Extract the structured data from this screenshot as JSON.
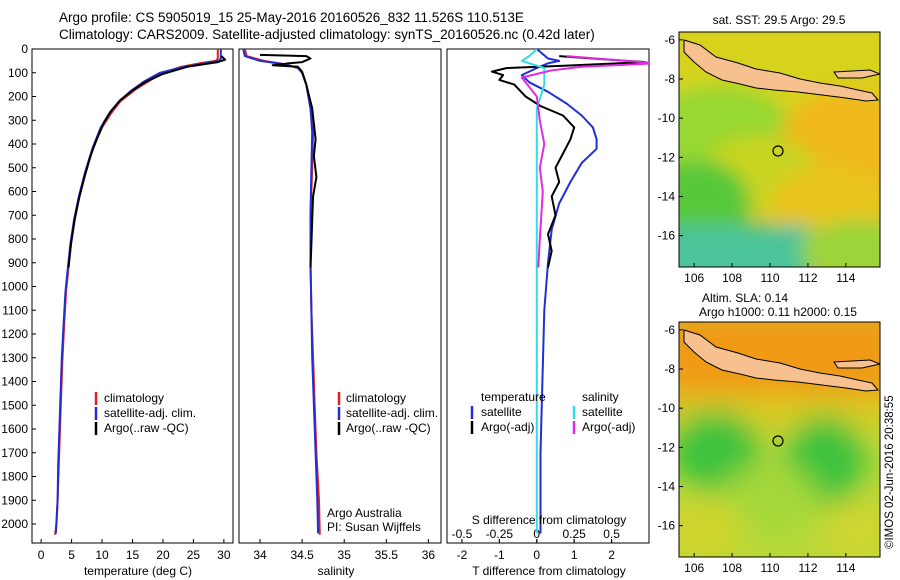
{
  "titles": {
    "line1": "Argo profile: CS 5905019_15 25-May-2016 20160526_832 11.526S 110.513E",
    "line2": "Climatology: CARS2009. Satellite-adjusted climatology: synTS_20160526.nc (0.42d later)"
  },
  "colors": {
    "climatology": "#e0201b",
    "satellite": "#1f2fd6",
    "argo": "#000000",
    "sat_s": "#33dde8",
    "argo_adj": "#e02be0",
    "land": "#f6c18f"
  },
  "depth_axis": {
    "ticks": [
      "0",
      "100",
      "200",
      "300",
      "400",
      "500",
      "600",
      "700",
      "800",
      "900",
      "1000",
      "1100",
      "1200",
      "1300",
      "1400",
      "1500",
      "1600",
      "1700",
      "1800",
      "1900",
      "2000"
    ],
    "ylim": [
      0,
      2080
    ]
  },
  "chart_data": [
    {
      "type": "line",
      "id": "temperature",
      "xlabel": "temperature (deg C)",
      "xlim": [
        -1.5,
        31.5
      ],
      "xticks": [
        "0",
        "5",
        "10",
        "15",
        "20",
        "25",
        "30"
      ],
      "legend": [
        "climatology",
        "satellite-adj. clim.",
        "Argo(..raw -QC)"
      ],
      "series": [
        {
          "name": "climatology",
          "color": "climatology",
          "points": [
            [
              29.0,
              0
            ],
            [
              29.0,
              40
            ],
            [
              28.7,
              50
            ],
            [
              26.0,
              60
            ],
            [
              23.0,
              75
            ],
            [
              20.0,
              100
            ],
            [
              18.0,
              130
            ],
            [
              15.5,
              170
            ],
            [
              13.0,
              220
            ],
            [
              11.5,
              270
            ],
            [
              10.0,
              330
            ],
            [
              8.5,
              420
            ],
            [
              7.3,
              520
            ],
            [
              6.3,
              620
            ],
            [
              5.5,
              720
            ],
            [
              4.9,
              820
            ],
            [
              4.5,
              920
            ],
            [
              4.1,
              1020
            ],
            [
              3.8,
              1150
            ],
            [
              3.5,
              1300
            ],
            [
              3.3,
              1450
            ],
            [
              3.1,
              1600
            ],
            [
              2.9,
              1750
            ],
            [
              2.7,
              1900
            ],
            [
              2.5,
              2000
            ],
            [
              2.3,
              2045
            ]
          ]
        },
        {
          "name": "satellite-adj. clim.",
          "color": "satellite",
          "points": [
            [
              29.5,
              0
            ],
            [
              29.5,
              40
            ],
            [
              29.2,
              50
            ],
            [
              26.5,
              62
            ],
            [
              23.0,
              78
            ],
            [
              19.5,
              100
            ],
            [
              17.0,
              135
            ],
            [
              14.8,
              175
            ],
            [
              12.8,
              220
            ],
            [
              11.2,
              270
            ],
            [
              9.8,
              330
            ],
            [
              8.4,
              420
            ],
            [
              7.2,
              520
            ],
            [
              6.2,
              620
            ],
            [
              5.4,
              720
            ],
            [
              4.8,
              820
            ],
            [
              4.4,
              920
            ],
            [
              4.0,
              1020
            ],
            [
              3.7,
              1150
            ],
            [
              3.4,
              1300
            ],
            [
              3.2,
              1450
            ],
            [
              3.0,
              1600
            ],
            [
              2.8,
              1750
            ],
            [
              2.7,
              1900
            ],
            [
              2.5,
              2000
            ],
            [
              2.4,
              2040
            ]
          ]
        },
        {
          "name": "Argo(..raw -QC)",
          "color": "argo",
          "points": [
            [
              29.6,
              30
            ],
            [
              30.2,
              45
            ],
            [
              29.0,
              55
            ],
            [
              24.0,
              75
            ],
            [
              20.0,
              105
            ],
            [
              17.0,
              140
            ],
            [
              15.0,
              175
            ],
            [
              13.0,
              215
            ],
            [
              11.5,
              260
            ],
            [
              10.3,
              310
            ],
            [
              9.1,
              380
            ],
            [
              8.1,
              450
            ],
            [
              7.1,
              540
            ],
            [
              6.2,
              630
            ],
            [
              5.5,
              720
            ],
            [
              4.9,
              820
            ],
            [
              4.5,
              920
            ]
          ]
        }
      ]
    },
    {
      "type": "line",
      "id": "salinity",
      "xlabel": "salinity",
      "xlim": [
        33.75,
        36.15
      ],
      "xticks": [
        "34",
        "34.5",
        "35",
        "35.5",
        "36"
      ],
      "legend": [
        "climatology",
        "satellite-adj. clim.",
        "Argo(..raw -QC)"
      ],
      "annotation": [
        "Argo Australia",
        "PI: Susan Wijffels"
      ],
      "series": [
        {
          "name": "climatology",
          "color": "climatology",
          "points": [
            [
              33.82,
              0
            ],
            [
              33.84,
              30
            ],
            [
              34.05,
              50
            ],
            [
              34.3,
              65
            ],
            [
              34.45,
              80
            ],
            [
              34.5,
              100
            ],
            [
              34.55,
              150
            ],
            [
              34.6,
              250
            ],
            [
              34.63,
              350
            ],
            [
              34.62,
              500
            ],
            [
              34.6,
              700
            ],
            [
              34.6,
              900
            ],
            [
              34.61,
              1100
            ],
            [
              34.63,
              1300
            ],
            [
              34.65,
              1500
            ],
            [
              34.67,
              1700
            ],
            [
              34.7,
              1900
            ],
            [
              34.71,
              2045
            ]
          ]
        },
        {
          "name": "satellite-adj. clim.",
          "color": "satellite",
          "points": [
            [
              33.8,
              0
            ],
            [
              33.82,
              30
            ],
            [
              34.0,
              50
            ],
            [
              34.3,
              65
            ],
            [
              34.45,
              80
            ],
            [
              34.5,
              100
            ],
            [
              34.55,
              150
            ],
            [
              34.6,
              250
            ],
            [
              34.62,
              350
            ],
            [
              34.61,
              500
            ],
            [
              34.6,
              700
            ],
            [
              34.6,
              900
            ],
            [
              34.61,
              1100
            ],
            [
              34.62,
              1300
            ],
            [
              34.64,
              1500
            ],
            [
              34.66,
              1700
            ],
            [
              34.68,
              1900
            ],
            [
              34.69,
              2040
            ]
          ]
        },
        {
          "name": "Argo(..raw -QC)",
          "color": "argo",
          "points": [
            [
              34.0,
              25
            ],
            [
              34.55,
              30
            ],
            [
              34.6,
              40
            ],
            [
              34.5,
              55
            ],
            [
              34.35,
              60
            ],
            [
              34.15,
              68
            ],
            [
              34.45,
              75
            ],
            [
              34.5,
              95
            ],
            [
              34.55,
              150
            ],
            [
              34.62,
              250
            ],
            [
              34.66,
              380
            ],
            [
              34.64,
              450
            ],
            [
              34.67,
              540
            ],
            [
              34.63,
              620
            ],
            [
              34.62,
              720
            ],
            [
              34.61,
              820
            ],
            [
              34.6,
              920
            ]
          ]
        }
      ]
    },
    {
      "type": "line",
      "id": "difference",
      "xlabel": "T difference from climatology",
      "xlabel_top": "S difference from climatology",
      "xlim": [
        -2.4,
        3.0
      ],
      "xticks": [
        "-2",
        "-1",
        "0",
        "1",
        "2"
      ],
      "xticks_top": [
        "-0.5",
        "-0.25",
        "0",
        "0.25",
        "0.5"
      ],
      "legend_left": [
        "temperature",
        "satellite",
        "Argo(-adj)"
      ],
      "legend_right": [
        "salinity",
        "satellite",
        "Argo(-adj)"
      ],
      "series": [
        {
          "name": "T satellite",
          "color": "satellite",
          "points": [
            [
              0,
              0
            ],
            [
              0.3,
              40
            ],
            [
              0.6,
              50
            ],
            [
              0.3,
              60
            ],
            [
              0.0,
              80
            ],
            [
              -0.4,
              110
            ],
            [
              -0.2,
              140
            ],
            [
              0.3,
              180
            ],
            [
              0.8,
              230
            ],
            [
              1.2,
              280
            ],
            [
              1.5,
              330
            ],
            [
              1.6,
              380
            ],
            [
              1.6,
              420
            ],
            [
              1.2,
              480
            ],
            [
              0.9,
              560
            ],
            [
              0.6,
              650
            ],
            [
              0.4,
              760
            ],
            [
              0.3,
              900
            ],
            [
              0.2,
              1100
            ],
            [
              0.15,
              1400
            ],
            [
              0.1,
              1700
            ],
            [
              0.1,
              2040
            ]
          ]
        },
        {
          "name": "T Argo(-adj)",
          "color": "argo",
          "points": [
            [
              0.6,
              30
            ],
            [
              1.5,
              40
            ],
            [
              2.9,
              55
            ],
            [
              0.8,
              70
            ],
            [
              -0.8,
              80
            ],
            [
              -1.2,
              95
            ],
            [
              -0.9,
              110
            ],
            [
              -1.0,
              130
            ],
            [
              -0.6,
              150
            ],
            [
              -0.3,
              200
            ],
            [
              0.1,
              240
            ],
            [
              0.7,
              280
            ],
            [
              1.0,
              330
            ],
            [
              0.9,
              380
            ],
            [
              0.7,
              440
            ],
            [
              0.5,
              500
            ],
            [
              0.6,
              560
            ],
            [
              0.4,
              620
            ],
            [
              0.5,
              700
            ],
            [
              0.3,
              780
            ],
            [
              0.4,
              850
            ],
            [
              0.3,
              920
            ]
          ]
        },
        {
          "name": "S satellite",
          "color": "sat_s",
          "points": [
            [
              0,
              0
            ],
            [
              -0.05,
              30
            ],
            [
              -0.1,
              50
            ],
            [
              0.05,
              80
            ],
            [
              0.05,
              150
            ],
            [
              0.0,
              250
            ],
            [
              0.0,
              400
            ],
            [
              0.0,
              600
            ],
            [
              0.0,
              800
            ],
            [
              0.0,
              1000
            ],
            [
              0.0,
              1400
            ],
            [
              0.0,
              1800
            ],
            [
              0.0,
              2040
            ]
          ]
        },
        {
          "name": "S Argo(-adj)",
          "color": "argo_adj",
          "points": [
            [
              0.2,
              30
            ],
            [
              0.4,
              40
            ],
            [
              0.8,
              60
            ],
            [
              0.3,
              75
            ],
            [
              0.1,
              90
            ],
            [
              -0.1,
              120
            ],
            [
              0.0,
              200
            ],
            [
              0.02,
              300
            ],
            [
              0.05,
              400
            ],
            [
              0.02,
              500
            ],
            [
              0.04,
              600
            ],
            [
              0.03,
              700
            ],
            [
              0.02,
              800
            ],
            [
              0.01,
              920
            ]
          ]
        }
      ]
    }
  ],
  "maps": {
    "sst": {
      "title": "sat. SST: 29.5 Argo: 29.5",
      "yticks": [
        "-6",
        "-8",
        "-10",
        "-12",
        "-14",
        "-16"
      ],
      "xticks": [
        "106",
        "108",
        "110",
        "112",
        "114"
      ]
    },
    "sla": {
      "title_line1": "Altim. SLA: 0.14",
      "title_line2": "Argo h1000: 0.11 h2000: 0.15",
      "yticks": [
        "-6",
        "-8",
        "-10",
        "-12",
        "-14",
        "-16"
      ],
      "xticks": [
        "106",
        "108",
        "110",
        "112",
        "114"
      ]
    },
    "argo_location": {
      "lon": 110.513,
      "lat": -11.526
    }
  },
  "footer": "©IMOS 02-Jun-2016 20:38:55"
}
